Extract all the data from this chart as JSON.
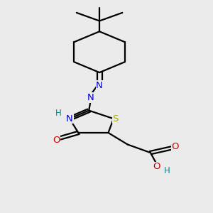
{
  "bg_color": "#ebebeb",
  "line_color": "#000000",
  "N_color": "#0000cc",
  "O_color": "#cc0000",
  "S_color": "#aaaa00",
  "H_color": "#008888",
  "line_width": 1.6,
  "font_size": 9.5,
  "xlim": [
    2.5,
    8.5
  ],
  "ylim": [
    1.2,
    10.2
  ]
}
